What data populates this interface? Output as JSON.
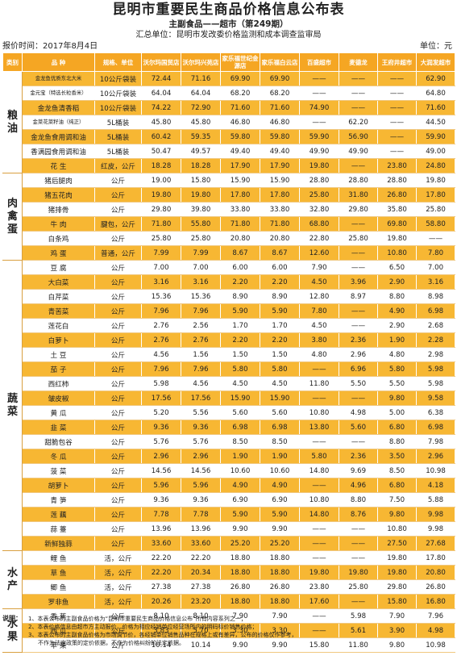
{
  "header": {
    "title": "昆明市重要民生商品价格信息公布表",
    "subtitle": "主副食品——超市（第249期）",
    "unit": "汇总单位：昆明市发改委价格监测和成本调查监审局"
  },
  "meta": {
    "report_time": "报价时间：2017年8月4日",
    "currency_unit": "单位：元"
  },
  "columns": [
    "类别",
    "品 种",
    "规格、单位",
    "沃尔玛国贸店",
    "沃尔玛兴苑店",
    "家乐福世纪金源店",
    "家乐福白云店",
    "百盛超市",
    "麦德龙",
    "王府井超市",
    "大润发超市"
  ],
  "categories": [
    {
      "name": "粮油",
      "rows": [
        {
          "name": "金龙鱼优质东北大米",
          "spec": "10公斤袋装",
          "p": [
            "72.44",
            "71.16",
            "69.90",
            "69.90",
            "——",
            "——",
            "——",
            "62.90"
          ]
        },
        {
          "name": "金元宝（特选长粒香米）",
          "spec": "10公斤袋装",
          "p": [
            "64.04",
            "64.04",
            "68.20",
            "68.20",
            "——",
            "——",
            "——",
            "64.80"
          ]
        },
        {
          "name": "金龙鱼清香稻",
          "spec": "10公斤袋装",
          "p": [
            "74.22",
            "72.90",
            "71.60",
            "71.60",
            "74.90",
            "——",
            "——",
            "71.60"
          ]
        },
        {
          "name": "金菜花菜籽油（纯正）",
          "spec": "5L桶装",
          "p": [
            "45.80",
            "45.80",
            "46.80",
            "46.80",
            "——",
            "62.20",
            "——",
            "44.50"
          ]
        },
        {
          "name": "金龙鱼食用调和油",
          "spec": "5L桶装",
          "p": [
            "60.42",
            "59.35",
            "59.80",
            "59.80",
            "59.90",
            "56.90",
            "——",
            "59.90"
          ]
        },
        {
          "name": "香满园食用调和油",
          "spec": "5L桶装",
          "p": [
            "50.47",
            "49.57",
            "49.40",
            "49.40",
            "49.90",
            "49.90",
            "——",
            "49.00"
          ]
        },
        {
          "name": "花 生",
          "spec": "红皮，公斤",
          "p": [
            "18.28",
            "18.28",
            "17.90",
            "17.90",
            "19.80",
            "——",
            "23.80",
            "24.80"
          ]
        }
      ]
    },
    {
      "name": "肉禽蛋",
      "rows": [
        {
          "name": "猪后腿肉",
          "spec": "公斤",
          "p": [
            "19.00",
            "15.80",
            "15.90",
            "15.90",
            "28.80",
            "28.80",
            "28.80",
            "19.80"
          ]
        },
        {
          "name": "猪五花肉",
          "spec": "公斤",
          "p": [
            "19.80",
            "19.80",
            "17.80",
            "17.80",
            "25.80",
            "31.80",
            "26.80",
            "17.80"
          ]
        },
        {
          "name": "猪排骨",
          "spec": "公斤",
          "p": [
            "29.80",
            "39.80",
            "33.80",
            "33.80",
            "32.80",
            "29.80",
            "35.80",
            "25.80"
          ]
        },
        {
          "name": "牛 肉",
          "spec": "腱包，公斤",
          "p": [
            "71.80",
            "55.80",
            "71.80",
            "71.80",
            "68.80",
            "——",
            "69.80",
            "58.80"
          ]
        },
        {
          "name": "白条鸡",
          "spec": "公斤",
          "p": [
            "25.80",
            "25.80",
            "20.80",
            "20.80",
            "22.80",
            "25.80",
            "19.80",
            "——"
          ]
        },
        {
          "name": "鸡 蛋",
          "spec": "普通，公斤",
          "p": [
            "7.99",
            "7.99",
            "8.67",
            "8.67",
            "12.60",
            "——",
            "10.80",
            "7.80"
          ]
        }
      ]
    },
    {
      "name": "蔬菜",
      "rows": [
        {
          "name": "豆 腐",
          "spec": "公斤",
          "p": [
            "7.00",
            "7.00",
            "6.00",
            "6.00",
            "7.90",
            "——",
            "6.50",
            "7.00"
          ]
        },
        {
          "name": "大白菜",
          "spec": "公斤",
          "p": [
            "3.16",
            "3.16",
            "2.20",
            "2.20",
            "4.50",
            "3.96",
            "2.90",
            "3.16"
          ]
        },
        {
          "name": "白芹菜",
          "spec": "公斤",
          "p": [
            "15.36",
            "15.36",
            "8.90",
            "8.90",
            "12.80",
            "8.97",
            "8.80",
            "8.98"
          ]
        },
        {
          "name": "青苦菜",
          "spec": "公斤",
          "p": [
            "7.96",
            "7.96",
            "5.90",
            "5.90",
            "7.80",
            "——",
            "4.90",
            "6.98"
          ]
        },
        {
          "name": "莲花白",
          "spec": "公斤",
          "p": [
            "2.76",
            "2.56",
            "1.70",
            "1.70",
            "4.50",
            "——",
            "2.90",
            "2.68"
          ]
        },
        {
          "name": "白萝卜",
          "spec": "公斤",
          "p": [
            "2.76",
            "2.76",
            "2.20",
            "2.20",
            "3.80",
            "2.36",
            "1.90",
            "2.28"
          ]
        },
        {
          "name": "土 豆",
          "spec": "公斤",
          "p": [
            "4.56",
            "1.56",
            "1.50",
            "1.50",
            "4.80",
            "2.96",
            "4.80",
            "2.98"
          ]
        },
        {
          "name": "茄 子",
          "spec": "公斤",
          "p": [
            "7.96",
            "7.96",
            "5.80",
            "5.80",
            "——",
            "6.96",
            "5.80",
            "5.98"
          ]
        },
        {
          "name": "西红柿",
          "spec": "公斤",
          "p": [
            "5.98",
            "4.56",
            "4.50",
            "4.50",
            "11.80",
            "5.50",
            "5.50",
            "5.98"
          ]
        },
        {
          "name": "皱皮椒",
          "spec": "公斤",
          "p": [
            "17.56",
            "17.56",
            "15.90",
            "15.90",
            "——",
            "——",
            "9.80",
            "9.58"
          ]
        },
        {
          "name": "黄 瓜",
          "spec": "公斤",
          "p": [
            "5.20",
            "5.56",
            "5.60",
            "5.60",
            "10.80",
            "4.98",
            "5.00",
            "6.38"
          ]
        },
        {
          "name": "韭 菜",
          "spec": "公斤",
          "p": [
            "9.36",
            "9.36",
            "6.98",
            "6.98",
            "13.80",
            "5.60",
            "6.80",
            "6.98"
          ]
        },
        {
          "name": "甜脆包谷",
          "spec": "公斤",
          "p": [
            "5.76",
            "5.76",
            "8.50",
            "8.50",
            "——",
            "——",
            "8.80",
            "7.98"
          ]
        },
        {
          "name": "冬 瓜",
          "spec": "公斤",
          "p": [
            "2.96",
            "2.96",
            "1.90",
            "1.90",
            "5.80",
            "2.36",
            "3.50",
            "2.96"
          ]
        },
        {
          "name": "菠 菜",
          "spec": "公斤",
          "p": [
            "14.56",
            "14.56",
            "10.60",
            "10.60",
            "14.80",
            "9.69",
            "8.50",
            "10.98"
          ]
        },
        {
          "name": "胡萝卜",
          "spec": "公斤",
          "p": [
            "5.96",
            "5.96",
            "4.90",
            "4.90",
            "——",
            "4.96",
            "6.80",
            "4.18"
          ]
        },
        {
          "name": "青 笋",
          "spec": "公斤",
          "p": [
            "9.36",
            "9.36",
            "6.90",
            "6.90",
            "10.80",
            "8.80",
            "7.50",
            "5.88"
          ]
        },
        {
          "name": "莲 藕",
          "spec": "公斤",
          "p": [
            "7.78",
            "7.78",
            "5.90",
            "5.90",
            "14.80",
            "8.76",
            "9.80",
            "9.98"
          ]
        },
        {
          "name": "蒜 薹",
          "spec": "公斤",
          "p": [
            "13.96",
            "13.96",
            "9.90",
            "9.90",
            "——",
            "——",
            "10.80",
            "9.98"
          ]
        },
        {
          "name": "新鲜独蒜",
          "spec": "公斤",
          "p": [
            "33.60",
            "33.60",
            "25.20",
            "25.20",
            "——",
            "——",
            "27.50",
            "27.68"
          ]
        }
      ]
    },
    {
      "name": "水产",
      "rows": [
        {
          "name": "鲤 鱼",
          "spec": "活，公斤",
          "p": [
            "22.20",
            "22.20",
            "18.80",
            "18.80",
            "——",
            "——",
            "19.80",
            "17.80"
          ]
        },
        {
          "name": "草 鱼",
          "spec": "活，公斤",
          "p": [
            "22.20",
            "20.34",
            "18.80",
            "18.80",
            "19.80",
            "19.80",
            "19.80",
            "20.80"
          ]
        },
        {
          "name": "鲫 鱼",
          "spec": "活，公斤",
          "p": [
            "27.38",
            "27.38",
            "26.80",
            "26.80",
            "23.80",
            "25.80",
            "29.80",
            "26.80"
          ]
        },
        {
          "name": "罗非鱼",
          "spec": "活，公斤",
          "p": [
            "20.26",
            "23.20",
            "18.80",
            "18.80",
            "17.60",
            "——",
            "15.80",
            "16.80"
          ]
        }
      ]
    },
    {
      "name": "水果",
      "rows": [
        {
          "name": "香 蕉",
          "spec": "公斤",
          "p": [
            "8.10",
            "8.10",
            "7.90",
            "7.90",
            "——",
            "5.98",
            "7.90",
            "7.96"
          ]
        },
        {
          "name": "西 瓜",
          "spec": "公斤",
          "p": [
            "3.83",
            "5.70",
            "3.30",
            "3.30",
            "——",
            "5.61",
            "3.90",
            "4.98"
          ]
        },
        {
          "name": "苹 果",
          "spec": "公斤",
          "p": [
            "10.14",
            "10.14",
            "9.90",
            "9.90",
            "15.80",
            "11.80",
            "9.80",
            "10.98"
          ]
        }
      ]
    }
  ],
  "notes": {
    "label": "说明：",
    "lines": [
      "1、本表公布的主副食品价格为“昆明市重要民生商品价格信息公布”所有内容系列之一；",
      "2、本表价格信息由超市方主动报价，价格为相应经销单位经营场所内的明码标价销售价格；",
      "3、本表公布的主副食品价格为市场调节价，各经销单位销售品种在规格上或有差异，公布的价格仅作参考，",
      "不作为法定政策的定价依据，不作为价格纠纷的法定依据。"
    ]
  }
}
